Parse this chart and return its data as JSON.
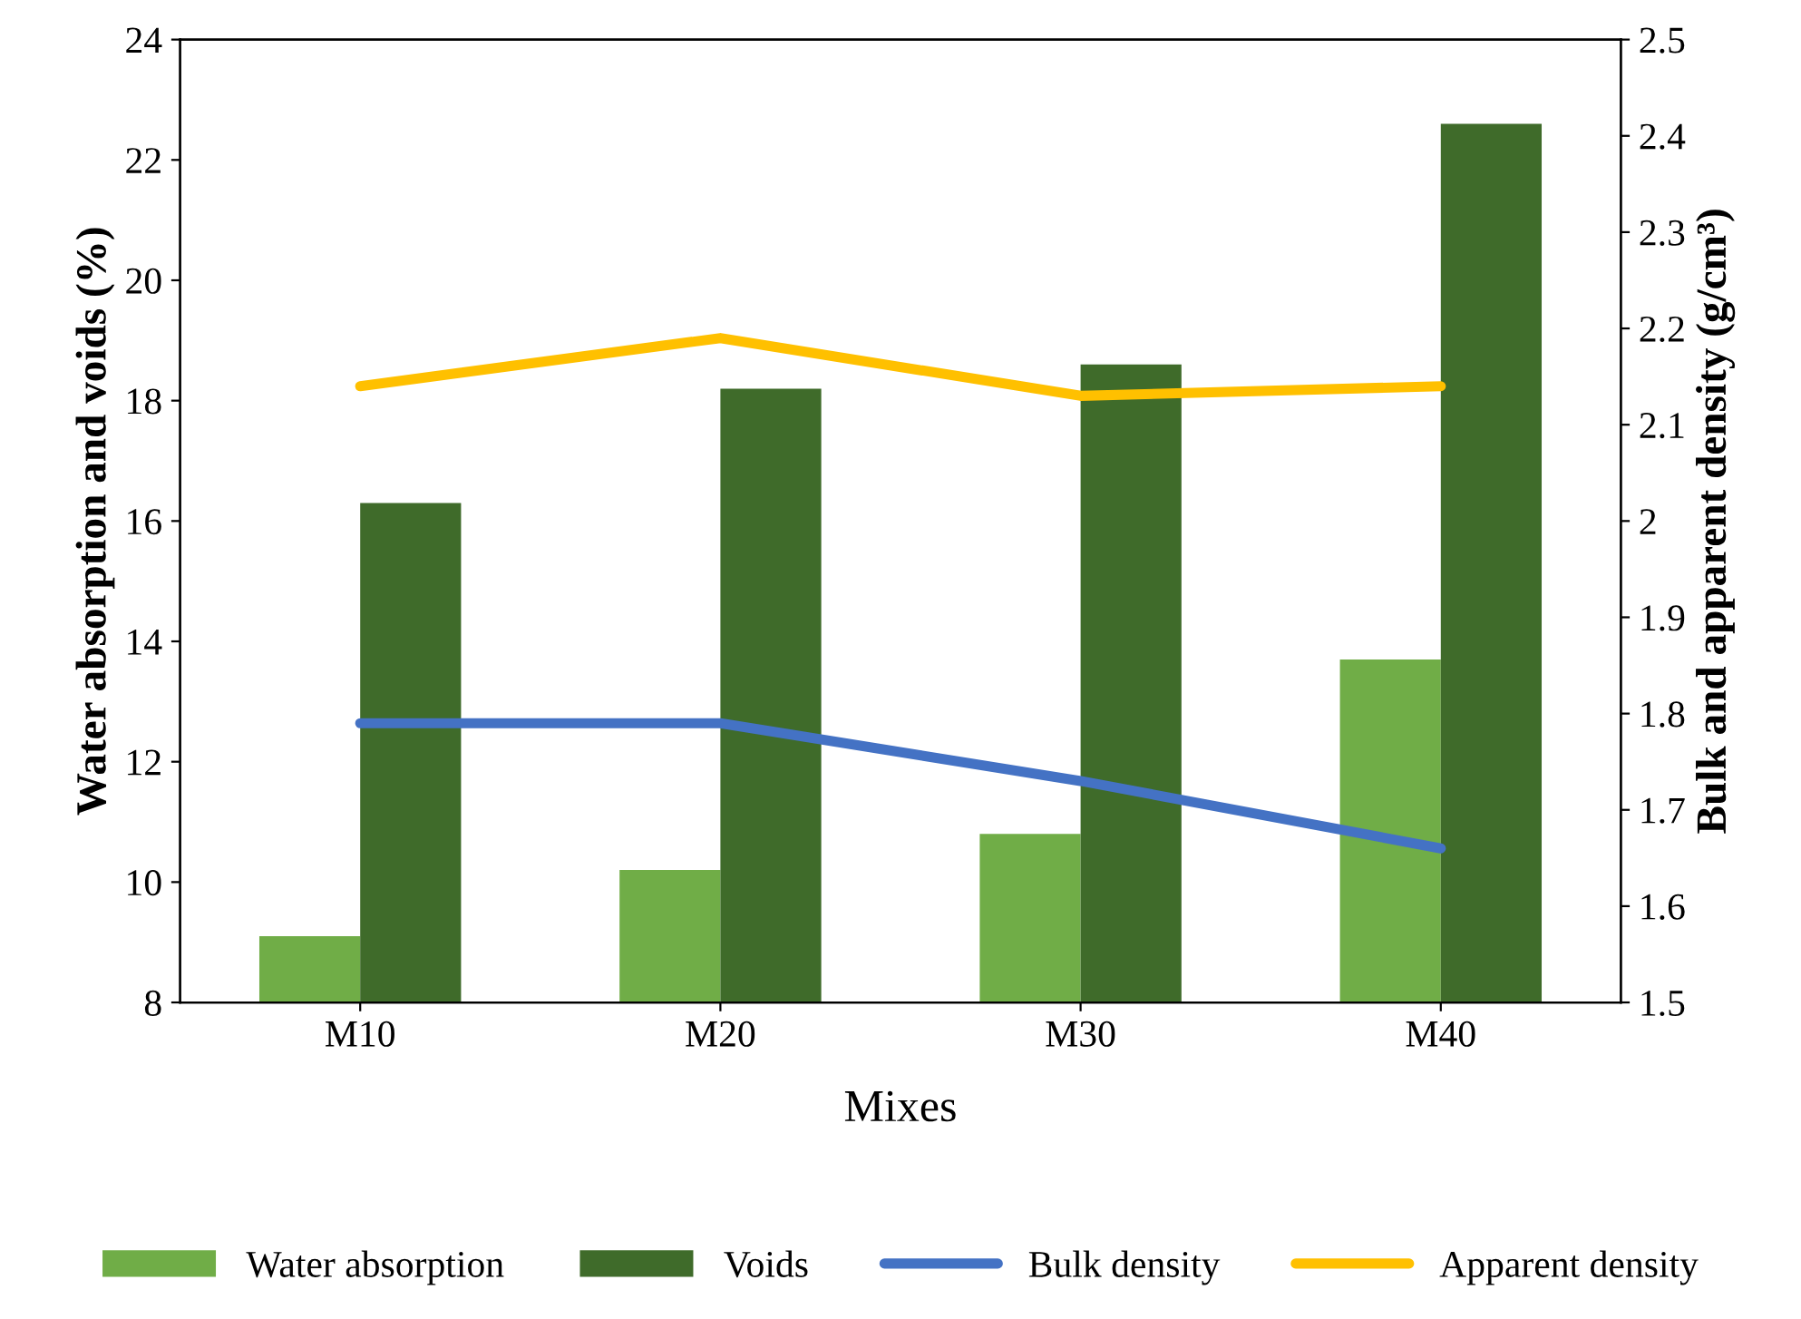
{
  "chart_data": {
    "type": "bar",
    "xlabel": "Mixes",
    "ylabel": "Water absorption and voids (%)",
    "y2label": "Bulk and apparent density (g/cm³)",
    "categories": [
      "M10",
      "M20",
      "M30",
      "M40"
    ],
    "series": [
      {
        "name": "Water absorption",
        "color": "#70ad47",
        "values": [
          9.1,
          10.2,
          10.8,
          13.7
        ]
      },
      {
        "name": "Voids",
        "color": "#3f6b2a",
        "values": [
          16.3,
          18.2,
          18.6,
          22.6
        ]
      },
      {
        "name": "Bulk density",
        "type": "line",
        "axis": "y2",
        "color": "#4472c4",
        "values": [
          1.79,
          1.79,
          1.73,
          1.66
        ]
      },
      {
        "name": "Apparent density",
        "type": "line",
        "axis": "y2",
        "color": "#ffc000",
        "values": [
          2.14,
          2.19,
          2.13,
          2.14
        ]
      }
    ],
    "ylim": [
      8,
      24
    ],
    "yticks": [
      8,
      10,
      12,
      14,
      16,
      18,
      20,
      22,
      24
    ],
    "y2lim": [
      1.5,
      2.5
    ],
    "y2ticks": [
      1.5,
      1.6,
      1.7,
      1.8,
      1.9,
      2,
      2.1,
      2.2,
      2.3,
      2.4,
      2.5
    ],
    "legend": "bottom",
    "grid": false
  }
}
